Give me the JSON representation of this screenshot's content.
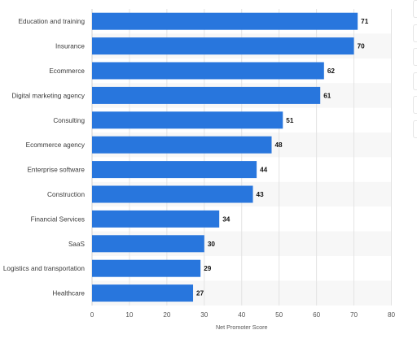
{
  "chart_data": {
    "type": "bar",
    "orientation": "horizontal",
    "categories": [
      "Education and training",
      "Insurance",
      "Ecommerce",
      "Digital marketing agency",
      "Consulting",
      "Ecommerce agency",
      "Enterprise software",
      "Construction",
      "Financial Services",
      "SaaS",
      "Logistics and transportation",
      "Healthcare"
    ],
    "values": [
      71,
      70,
      62,
      61,
      51,
      48,
      44,
      43,
      34,
      30,
      29,
      27
    ],
    "xlabel": "Net Promoter Score",
    "ylabel": "",
    "xlim": [
      0,
      80
    ],
    "xticks": [
      0,
      10,
      20,
      30,
      40,
      50,
      60,
      70,
      80
    ],
    "grid": true,
    "colors": {
      "bar": "#2876dd",
      "stripe": "#f7f7f7",
      "grid": "#e3e3e3"
    }
  }
}
